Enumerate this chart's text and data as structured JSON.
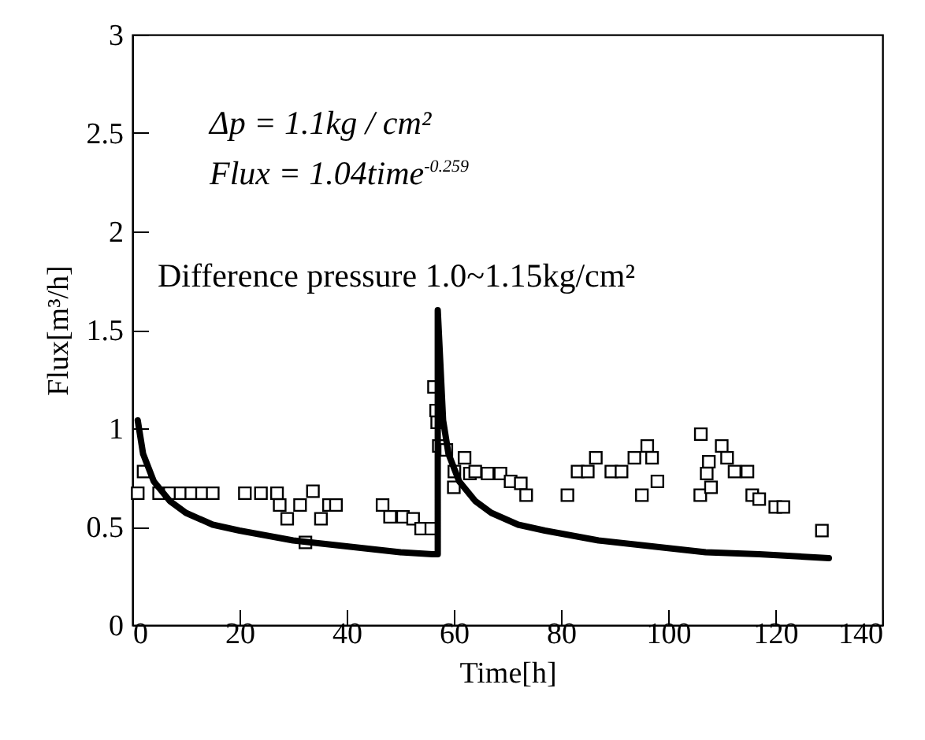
{
  "chart_data": {
    "type": "scatter",
    "xlabel": "Time[h]",
    "ylabel": "Flux[m³/h]",
    "xlim": [
      0,
      140
    ],
    "ylim": [
      0,
      3
    ],
    "xticks": [
      0,
      20,
      40,
      60,
      80,
      100,
      120,
      140
    ],
    "yticks": [
      0,
      0.5,
      1,
      1.5,
      2,
      2.5,
      3
    ],
    "grid": false,
    "annotations": [
      "Δp = 1.1kg / cm²",
      "Flux = 1.04time$^{-0.259}$",
      "Difference pressure 1.0~1.15kg/cm²"
    ],
    "series": [
      {
        "marker": "square",
        "color": "#000000",
        "x": [
          2.1,
          1,
          5,
          7,
          9,
          11,
          13,
          15,
          21,
          24,
          27,
          27.5,
          28.9,
          31.3,
          32.3,
          33.7,
          35.2,
          36.7,
          38,
          46.7,
          48.1,
          50.5,
          52.4,
          53.9,
          55.8,
          56.3,
          56.7,
          56.9,
          57.2,
          58.6,
          60,
          60.1,
          62,
          63,
          64,
          66.3,
          68.7,
          70.6,
          72.5,
          73.5,
          81.2,
          83.1,
          85,
          86.5,
          89.4,
          91.3,
          93.7,
          95.1,
          96.1,
          97,
          98,
          106,
          106.1,
          107.2,
          107.6,
          108,
          110,
          111,
          112.4,
          114.8,
          115.7,
          117,
          120,
          121.5,
          128.7
        ],
        "values": [
          0.78,
          0.67,
          0.67,
          0.67,
          0.67,
          0.67,
          0.67,
          0.67,
          0.67,
          0.67,
          0.67,
          0.61,
          0.54,
          0.61,
          0.42,
          0.68,
          0.54,
          0.61,
          0.61,
          0.61,
          0.55,
          0.55,
          0.54,
          0.49,
          0.49,
          1.21,
          1.09,
          1.03,
          0.91,
          0.89,
          0.7,
          0.78,
          0.85,
          0.77,
          0.78,
          0.77,
          0.77,
          0.73,
          0.72,
          0.66,
          0.66,
          0.78,
          0.78,
          0.85,
          0.78,
          0.78,
          0.85,
          0.66,
          0.91,
          0.85,
          0.73,
          0.66,
          0.97,
          0.77,
          0.83,
          0.7,
          0.91,
          0.85,
          0.78,
          0.78,
          0.66,
          0.64,
          0.6,
          0.6,
          0.48
        ]
      },
      {
        "type": "line",
        "color": "#000000",
        "x": [
          1,
          2,
          4,
          7,
          10,
          15,
          20,
          30,
          40,
          50,
          56,
          57,
          57,
          58,
          59,
          61,
          64,
          67,
          72,
          77,
          87,
          97,
          107,
          117,
          130
        ],
        "values": [
          1.04,
          0.87,
          0.73,
          0.63,
          0.57,
          0.51,
          0.48,
          0.43,
          0.4,
          0.37,
          0.36,
          0.36,
          1.6,
          1.04,
          0.87,
          0.73,
          0.63,
          0.57,
          0.51,
          0.48,
          0.43,
          0.4,
          0.37,
          0.36,
          0.34
        ]
      }
    ]
  }
}
